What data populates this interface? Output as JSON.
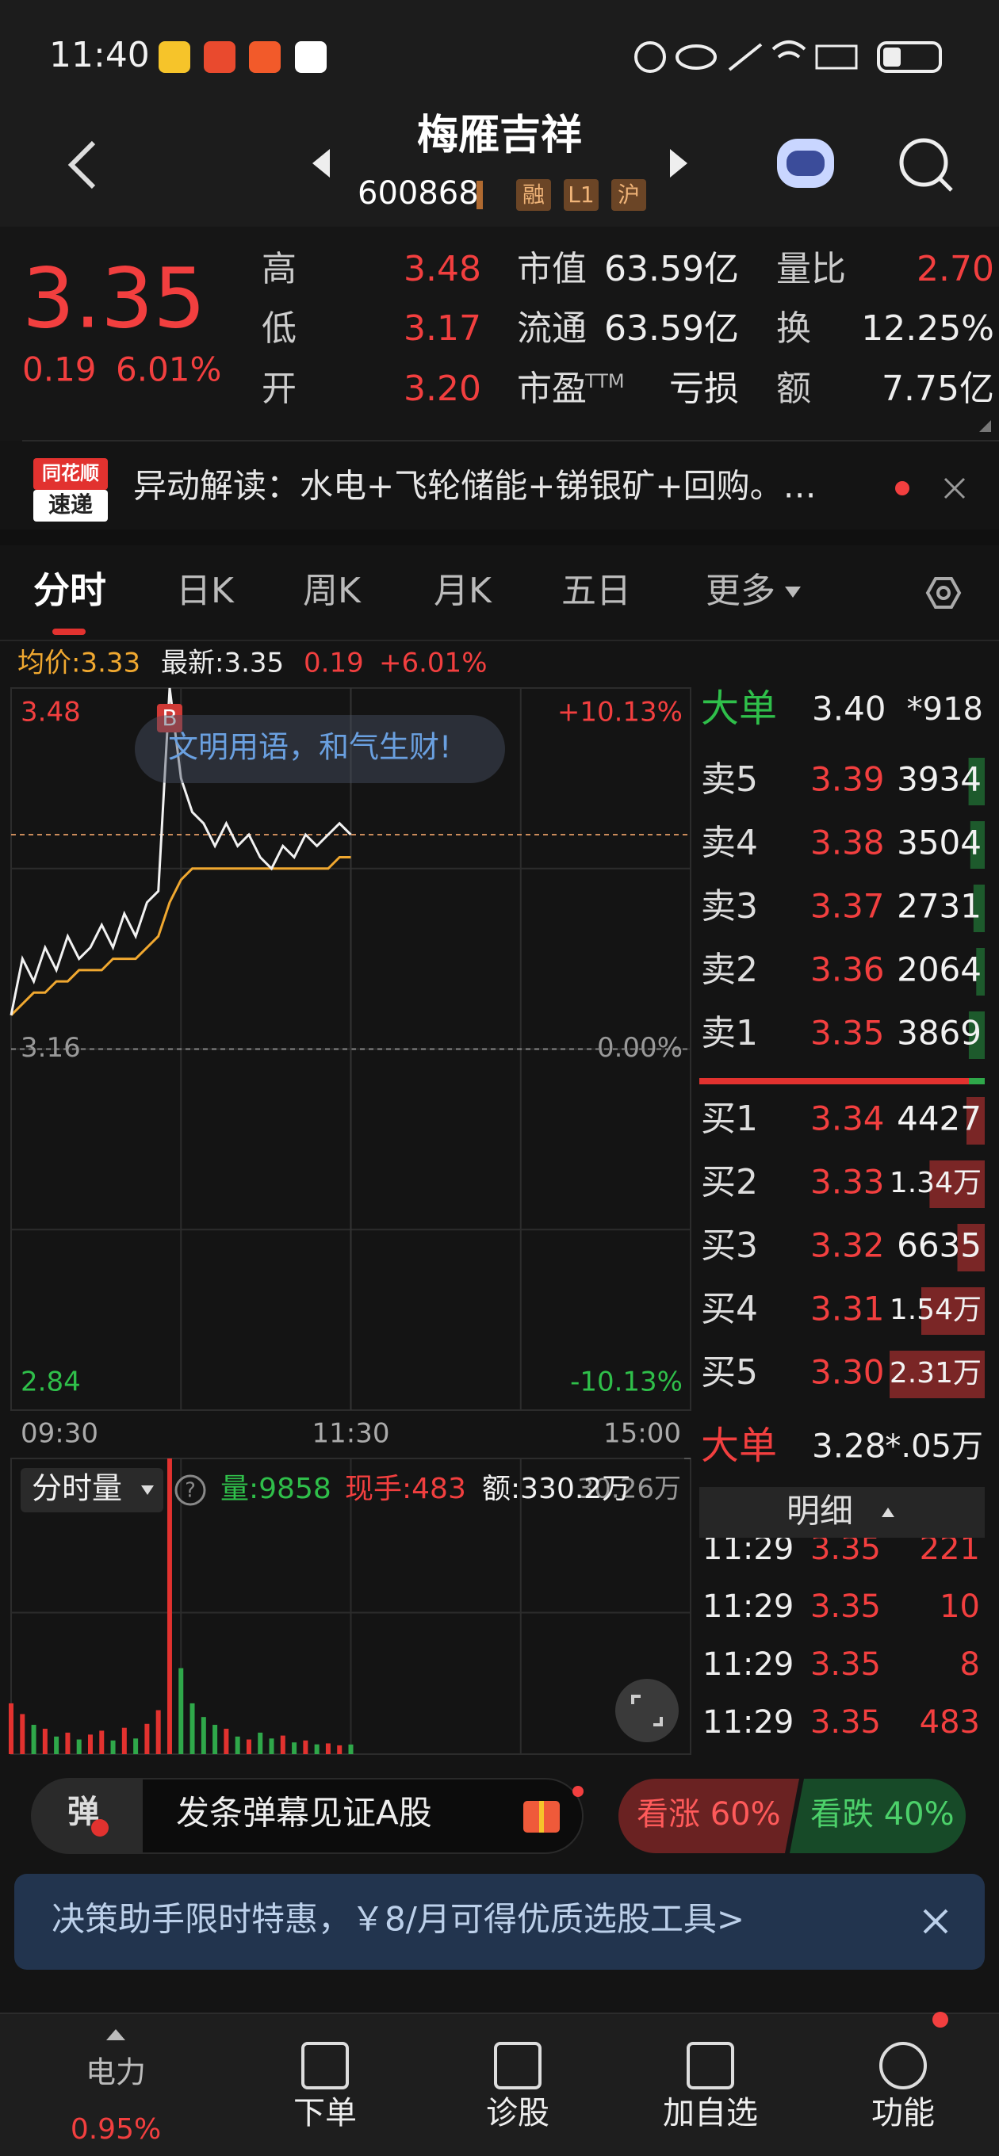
{
  "status_bar": {
    "time": "11:40"
  },
  "header": {
    "title": "梅雁吉祥",
    "code": "600868",
    "tags": [
      "融",
      "L1",
      "沪"
    ]
  },
  "quote": {
    "price": "3.35",
    "change": "0.19",
    "change_pct": "6.01%",
    "ttm": "TTM",
    "rows": [
      [
        "高",
        "3.48",
        "市值",
        "63.59亿",
        "量比",
        "2.70"
      ],
      [
        "低",
        "3.17",
        "流通",
        "63.59亿",
        "换",
        "12.25%"
      ],
      [
        "开",
        "3.20",
        "市盈",
        "亏损",
        "额",
        "7.75亿"
      ]
    ]
  },
  "alert": {
    "logo": [
      "同花顺",
      "速递"
    ],
    "text": "异动解读：水电+飞轮储能+锑银矿+回购。…"
  },
  "tabs": [
    "分时",
    "日K",
    "周K",
    "月K",
    "五日",
    "更多"
  ],
  "active_tab": 0,
  "chart_data": [
    {
      "type": "line",
      "info": [
        "均价:3.33",
        "最新:3.35",
        "0.19",
        "+6.01%"
      ],
      "marker": "B",
      "bubble": "文明用语，和气生财!",
      "x": [
        0,
        4,
        8,
        12,
        16,
        20,
        24,
        28,
        32,
        36,
        40,
        44,
        48,
        52,
        56,
        60,
        64,
        68,
        72,
        76,
        80,
        84,
        88,
        92,
        96,
        100,
        104,
        108,
        112,
        116,
        120
      ],
      "series": [
        {
          "color": "#f2f2f2",
          "values": [
            3.19,
            3.24,
            3.22,
            3.25,
            3.23,
            3.26,
            3.24,
            3.25,
            3.27,
            3.25,
            3.28,
            3.26,
            3.29,
            3.3,
            3.48,
            3.4,
            3.37,
            3.36,
            3.34,
            3.36,
            3.34,
            3.35,
            3.33,
            3.32,
            3.34,
            3.33,
            3.35,
            3.34,
            3.35,
            3.36,
            3.35
          ]
        },
        {
          "color": "#f0a830",
          "values": [
            3.19,
            3.2,
            3.21,
            3.21,
            3.22,
            3.22,
            3.23,
            3.23,
            3.23,
            3.24,
            3.24,
            3.24,
            3.25,
            3.26,
            3.29,
            3.31,
            3.32,
            3.32,
            3.32,
            3.32,
            3.32,
            3.32,
            3.32,
            3.32,
            3.32,
            3.32,
            3.32,
            3.32,
            3.32,
            3.33,
            3.33
          ]
        }
      ],
      "xlim": [
        0,
        240
      ],
      "xticks": [
        {
          "value": 0,
          "label": "09:30"
        },
        {
          "value": 120,
          "label": "11:30"
        },
        {
          "value": 240,
          "label": "15:00"
        }
      ],
      "ylim": [
        2.84,
        3.48
      ],
      "yticks": [
        3.48,
        3.16,
        2.84
      ],
      "y2lim": [
        -10.13,
        10.13
      ],
      "y2ticks": [
        {
          "value": 10.13,
          "label": "+10.13%"
        },
        {
          "value": 0,
          "label": "0.00%"
        },
        {
          "value": -10.13,
          "label": "-10.13%"
        }
      ]
    },
    {
      "type": "bar",
      "title": "分时量",
      "info": [
        "量:9858",
        "现手:483",
        "额:330.2万"
      ],
      "x": [
        0,
        4,
        8,
        12,
        16,
        20,
        24,
        28,
        32,
        36,
        40,
        44,
        48,
        52,
        56,
        60,
        64,
        68,
        72,
        76,
        80,
        84,
        88,
        92,
        96,
        100,
        104,
        108,
        112,
        116,
        120
      ],
      "values": [
        52000,
        41000,
        30000,
        26000,
        18000,
        22000,
        15000,
        20000,
        24000,
        14000,
        27000,
        16000,
        31000,
        45000,
        302600,
        88000,
        52000,
        38000,
        30000,
        26000,
        18000,
        15000,
        22000,
        16000,
        19000,
        12000,
        14000,
        10000,
        11000,
        9000,
        9858
      ],
      "xlim": [
        0,
        240
      ],
      "ylim": [
        0,
        302600
      ],
      "yticks": [
        {
          "value": 302600,
          "label": "30.26万"
        }
      ]
    }
  ],
  "order_book": {
    "big_top": [
      "大单",
      "3.40",
      "*918"
    ],
    "asks": [
      {
        "label": "卖5",
        "price": "3.39",
        "volume": 3934
      },
      {
        "label": "卖4",
        "price": "3.38",
        "volume": 3504
      },
      {
        "label": "卖3",
        "price": "3.37",
        "volume": 2731
      },
      {
        "label": "卖2",
        "price": "3.36",
        "volume": 2064
      },
      {
        "label": "卖1",
        "price": "3.35",
        "volume": 3869
      }
    ],
    "bids": [
      {
        "label": "买1",
        "price": "3.34",
        "volume": 4427
      },
      {
        "label": "买2",
        "price": "3.33",
        "volume": 13400,
        "volume_label": "1.34万"
      },
      {
        "label": "买3",
        "price": "3.32",
        "volume": 6635
      },
      {
        "label": "买4",
        "price": "3.31",
        "volume": 15400,
        "volume_label": "1.54万"
      },
      {
        "label": "买5",
        "price": "3.30",
        "volume": 23100,
        "volume_label": "2.31万"
      }
    ],
    "big_bottom": [
      "大单",
      "3.28",
      "*.05万"
    ],
    "detail_title": "明细",
    "ticks": [
      [
        "11:29",
        "3.35",
        "221"
      ],
      [
        "11:29",
        "3.35",
        "10"
      ],
      [
        "11:29",
        "3.35",
        "8"
      ],
      [
        "11:29",
        "3.35",
        "483"
      ]
    ]
  },
  "danmu": {
    "icon": "弹",
    "placeholder": "发条弹幕见证A股",
    "up": "看涨 60%",
    "down": "看跌 40%"
  },
  "banner": {
    "text": "决策助手限时特惠，￥8/月可得优质选股工具>"
  },
  "nav": [
    {
      "label": "电力",
      "sub": "0.95%"
    },
    {
      "label": "下单"
    },
    {
      "label": "诊股"
    },
    {
      "label": "加自选"
    },
    {
      "label": "功能"
    }
  ]
}
